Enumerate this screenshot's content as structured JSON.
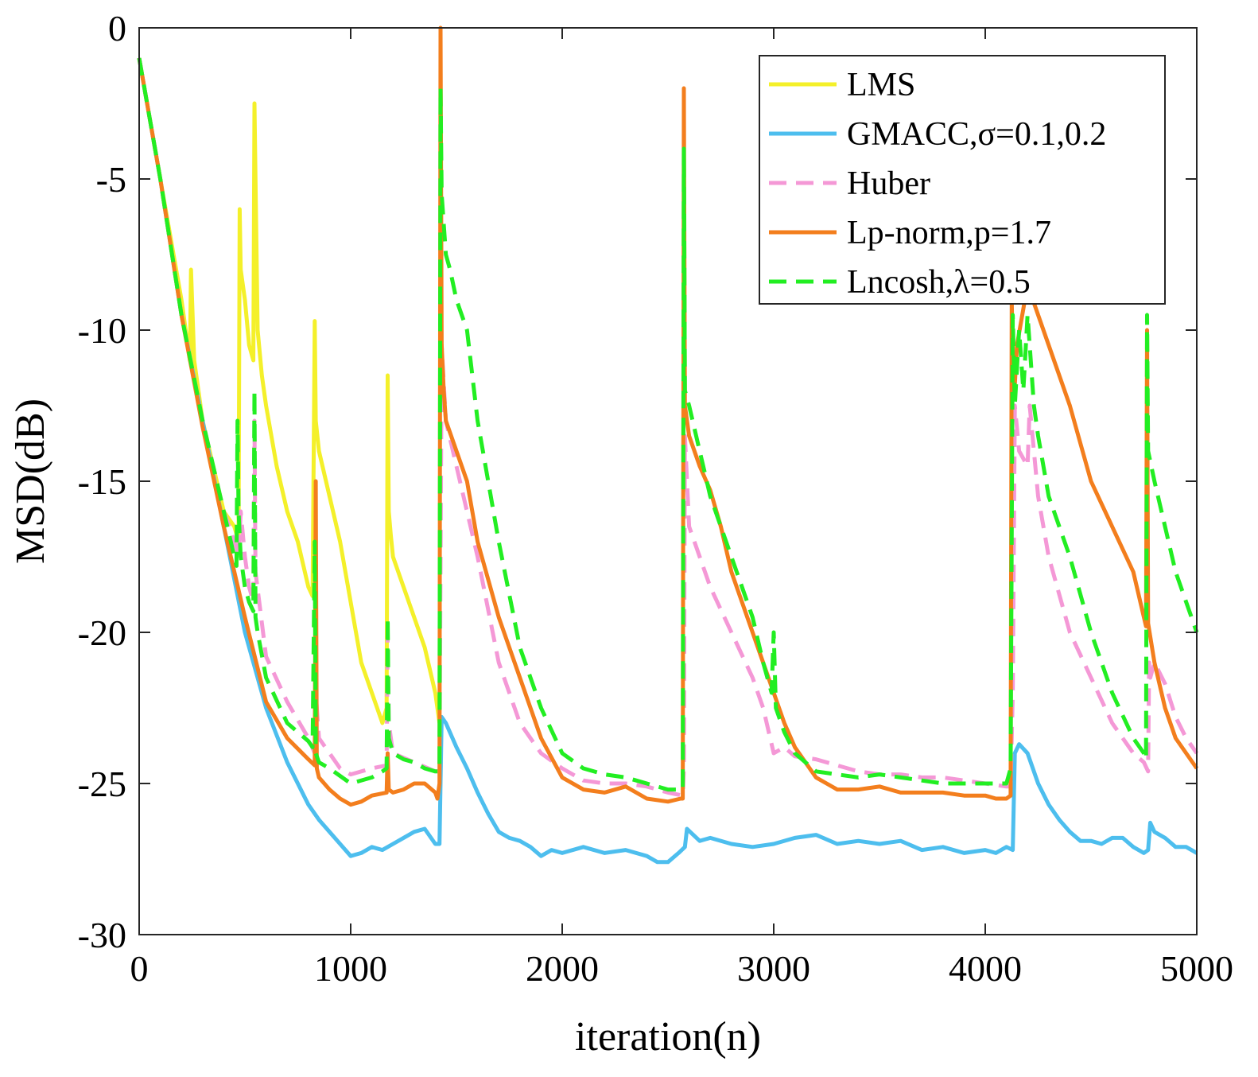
{
  "chart_data": {
    "type": "line",
    "title": "",
    "xlabel": "iteration(n)",
    "ylabel": "MSD(dB)",
    "xlim": [
      0,
      5000
    ],
    "ylim": [
      -30,
      0
    ],
    "xticks": [
      0,
      1000,
      2000,
      3000,
      4000,
      5000
    ],
    "xtick_labels": [
      "0",
      "1000",
      "2000",
      "3000",
      "4000",
      "5000"
    ],
    "yticks": [
      0,
      -5,
      -10,
      -15,
      -20,
      -25,
      -30
    ],
    "ytick_labels": [
      "0",
      "-5",
      "-10",
      "-15",
      "-20",
      "-25",
      "-30"
    ],
    "grid": false,
    "legend_position": "top-right",
    "series": [
      {
        "name": "LMS",
        "color": "#f4f02a",
        "dash": "solid",
        "x": [
          0,
          100,
          200,
          240,
          245,
          260,
          300,
          350,
          400,
          450,
          470,
          475,
          480,
          500,
          520,
          540,
          545,
          550,
          560,
          580,
          600,
          650,
          700,
          750,
          800,
          820,
          830,
          835,
          850,
          900,
          950,
          1000,
          1050,
          1100,
          1150,
          1170,
          1175,
          1180,
          1190,
          1200,
          1250,
          1300,
          1350,
          1400,
          1420
        ],
        "y": [
          -1,
          -5,
          -9,
          -11,
          -8,
          -11,
          -13,
          -14.5,
          -16,
          -16.5,
          -17,
          -6,
          -8,
          -9,
          -10.5,
          -11,
          -2.5,
          -5,
          -10,
          -11.5,
          -12.5,
          -14.5,
          -16,
          -17,
          -18.5,
          -18.8,
          -9.7,
          -13,
          -14,
          -15.5,
          -17,
          -19,
          -21,
          -22,
          -23,
          -22.5,
          -11.5,
          -16,
          -16.8,
          -17.5,
          -18.5,
          -19.5,
          -20.5,
          -22,
          -23
        ]
      },
      {
        "name": "GMACC,σ=0.1,0.2",
        "color": "#4dbeee",
        "dash": "solid",
        "x": [
          0,
          100,
          200,
          300,
          400,
          500,
          600,
          700,
          800,
          850,
          900,
          950,
          1000,
          1050,
          1100,
          1150,
          1200,
          1250,
          1300,
          1350,
          1400,
          1420,
          1430,
          1450,
          1500,
          1550,
          1600,
          1650,
          1700,
          1750,
          1800,
          1850,
          1900,
          1950,
          2000,
          2100,
          2200,
          2300,
          2400,
          2450,
          2500,
          2550,
          2580,
          2590,
          2650,
          2700,
          2800,
          2900,
          3000,
          3100,
          3200,
          3300,
          3400,
          3500,
          3600,
          3700,
          3800,
          3900,
          4000,
          4050,
          4100,
          4130,
          4140,
          4160,
          4200,
          4250,
          4300,
          4350,
          4400,
          4450,
          4500,
          4550,
          4600,
          4650,
          4700,
          4750,
          4770,
          4780,
          4800,
          4850,
          4900,
          4950,
          5000
        ],
        "y": [
          -1,
          -5,
          -9.5,
          -13,
          -16.5,
          -20,
          -22.5,
          -24.3,
          -25.7,
          -26.2,
          -26.6,
          -27,
          -27.4,
          -27.3,
          -27.1,
          -27.2,
          -27,
          -26.8,
          -26.6,
          -26.5,
          -27,
          -27,
          -22.8,
          -23,
          -23.8,
          -24.5,
          -25.3,
          -26,
          -26.6,
          -26.8,
          -26.9,
          -27.1,
          -27.4,
          -27.2,
          -27.3,
          -27.1,
          -27.3,
          -27.2,
          -27.4,
          -27.6,
          -27.6,
          -27.3,
          -27.1,
          -26.5,
          -26.9,
          -26.8,
          -27,
          -27.1,
          -27,
          -26.8,
          -26.7,
          -27,
          -26.9,
          -27,
          -26.9,
          -27.2,
          -27.1,
          -27.3,
          -27.2,
          -27.3,
          -27.1,
          -27.2,
          -24,
          -23.7,
          -24,
          -25,
          -25.7,
          -26.2,
          -26.6,
          -26.9,
          -26.9,
          -27,
          -26.8,
          -26.8,
          -27.1,
          -27.3,
          -27.2,
          -26.3,
          -26.6,
          -26.8,
          -27.1,
          -27.1,
          -27.3
        ]
      },
      {
        "name": "Huber",
        "color": "#f498d6",
        "dash": "dashed",
        "x": [
          0,
          100,
          200,
          300,
          400,
          460,
          470,
          480,
          500,
          520,
          540,
          545,
          550,
          600,
          700,
          800,
          830,
          835,
          850,
          900,
          950,
          1000,
          1100,
          1170,
          1175,
          1180,
          1200,
          1300,
          1400,
          1420,
          1430,
          1450,
          1500,
          1600,
          1700,
          1800,
          1900,
          2000,
          2100,
          2200,
          2300,
          2400,
          2500,
          2570,
          2575,
          2580,
          2600,
          2650,
          2700,
          2800,
          2900,
          2950,
          3000,
          3050,
          3100,
          3200,
          3300,
          3400,
          3500,
          3600,
          3700,
          3800,
          3900,
          4000,
          4100,
          4120,
          4130,
          4140,
          4160,
          4200,
          4210,
          4250,
          4300,
          4400,
          4500,
          4600,
          4700,
          4750,
          4770,
          4775,
          4780,
          4800,
          4850,
          4900,
          4950,
          5000
        ],
        "y": [
          -1,
          -5,
          -9.5,
          -13,
          -16,
          -17.2,
          -17.5,
          -16,
          -17.5,
          -18.5,
          -19,
          -13,
          -18,
          -20.8,
          -22.3,
          -23.5,
          -24,
          -22,
          -23.5,
          -24,
          -24.5,
          -24.7,
          -24.5,
          -24.4,
          -20,
          -23,
          -24,
          -24.3,
          -24.6,
          -24.6,
          -10.5,
          -13,
          -14.5,
          -17.5,
          -21,
          -23,
          -24,
          -24.5,
          -24.9,
          -25,
          -25,
          -25.1,
          -25.3,
          -25.4,
          -24.5,
          -13.5,
          -16.5,
          -17.5,
          -18.5,
          -20,
          -21.5,
          -22.5,
          -24,
          -23.8,
          -24.1,
          -24.2,
          -24.4,
          -24.6,
          -24.7,
          -24.7,
          -24.8,
          -24.8,
          -24.9,
          -25,
          -25.1,
          -25.1,
          -22,
          -12.5,
          -14,
          -14.5,
          -12.5,
          -15.5,
          -17.5,
          -20,
          -21.5,
          -23,
          -24,
          -24.3,
          -24.6,
          -21,
          -21.5,
          -21,
          -21.7,
          -22.8,
          -23.5,
          -24
        ]
      },
      {
        "name": "Lp-norm,p=1.7",
        "color": "#f37e1d",
        "dash": "solid",
        "x": [
          0,
          100,
          200,
          300,
          400,
          500,
          600,
          700,
          800,
          830,
          835,
          840,
          850,
          900,
          950,
          1000,
          1050,
          1100,
          1170,
          1175,
          1180,
          1200,
          1250,
          1300,
          1350,
          1400,
          1410,
          1420,
          1425,
          1430,
          1440,
          1450,
          1500,
          1550,
          1600,
          1700,
          1800,
          1900,
          2000,
          2100,
          2200,
          2300,
          2400,
          2500,
          2560,
          2570,
          2575,
          2580,
          2600,
          2650,
          2700,
          2750,
          2800,
          2900,
          3000,
          3050,
          3100,
          3150,
          3200,
          3250,
          3300,
          3400,
          3500,
          3600,
          3700,
          3800,
          3900,
          4000,
          4050,
          4100,
          4120,
          4125,
          4130,
          4140,
          4150,
          4200,
          4250,
          4300,
          4400,
          4500,
          4600,
          4700,
          4750,
          4760,
          4765,
          4770,
          4800,
          4850,
          4900,
          4950,
          5000
        ],
        "y": [
          -1,
          -5,
          -9.5,
          -13.2,
          -16.5,
          -19.5,
          -22.3,
          -23.5,
          -24.2,
          -24.4,
          -15,
          -24.5,
          -24.8,
          -25.2,
          -25.5,
          -25.7,
          -25.6,
          -25.4,
          -25.3,
          -24,
          -25.2,
          -25.3,
          -25.2,
          -25,
          -25,
          -25.3,
          -25.5,
          -25,
          0,
          -10.5,
          -12,
          -13,
          -14,
          -15,
          -17,
          -19.5,
          -21.5,
          -23.5,
          -24.8,
          -25.2,
          -25.3,
          -25.1,
          -25.5,
          -25.6,
          -25.5,
          -25.5,
          -2,
          -12.5,
          -13.5,
          -14.5,
          -15.3,
          -16.5,
          -18,
          -20,
          -22,
          -23,
          -23.8,
          -24.3,
          -24.8,
          -25,
          -25.2,
          -25.2,
          -25.1,
          -25.3,
          -25.3,
          -25.3,
          -25.4,
          -25.4,
          -25.5,
          -25.5,
          -25.4,
          -9,
          -11,
          -11.8,
          -10.5,
          -8.5,
          -9.5,
          -10.5,
          -12.5,
          -15,
          -16.5,
          -18,
          -19.5,
          -19.8,
          -10,
          -19.7,
          -21,
          -22.5,
          -23.5,
          -24,
          -24.5
        ]
      },
      {
        "name": "Lncosh,λ=0.5",
        "color": "#22ee22",
        "dash": "dashed",
        "x": [
          0,
          100,
          200,
          300,
          400,
          450,
          460,
          465,
          470,
          480,
          500,
          520,
          540,
          545,
          550,
          560,
          600,
          700,
          800,
          820,
          830,
          835,
          850,
          900,
          1000,
          1100,
          1150,
          1170,
          1175,
          1180,
          1200,
          1250,
          1300,
          1350,
          1400,
          1420,
          1425,
          1430,
          1450,
          1470,
          1500,
          1550,
          1600,
          1700,
          1800,
          1900,
          2000,
          2100,
          2200,
          2300,
          2400,
          2500,
          2570,
          2575,
          2580,
          2600,
          2650,
          2700,
          2800,
          2900,
          2950,
          2990,
          3000,
          3010,
          3050,
          3100,
          3200,
          3300,
          3400,
          3500,
          3600,
          3700,
          3800,
          3900,
          4000,
          4100,
          4120,
          4130,
          4140,
          4160,
          4180,
          4200,
          4210,
          4230,
          4250,
          4300,
          4400,
          4500,
          4600,
          4700,
          4750,
          4760,
          4765,
          4770,
          4800,
          4850,
          4900,
          4950,
          5000
        ],
        "y": [
          -1,
          -5,
          -9.5,
          -13,
          -16,
          -17.5,
          -17.8,
          -13,
          -16,
          -17.5,
          -18.5,
          -19,
          -19.3,
          -12,
          -19.5,
          -20,
          -21.5,
          -23,
          -23.6,
          -23.8,
          -17,
          -24,
          -24.3,
          -24.5,
          -25,
          -24.8,
          -24.6,
          -24.5,
          -19.5,
          -23.5,
          -24,
          -24.2,
          -24.3,
          -24.5,
          -24.6,
          -24.6,
          -2,
          -5.5,
          -7.5,
          -8,
          -9,
          -10,
          -13,
          -17,
          -20.5,
          -22.5,
          -24,
          -24.5,
          -24.7,
          -24.8,
          -25,
          -25.2,
          -25.2,
          -4,
          -12,
          -12.5,
          -14,
          -15.5,
          -17.5,
          -19.5,
          -21,
          -22,
          -20,
          -22.5,
          -23.3,
          -24,
          -24.6,
          -24.7,
          -24.8,
          -24.7,
          -24.8,
          -24.9,
          -25,
          -25,
          -25,
          -25,
          -24.5,
          -9.5,
          -12.5,
          -10,
          -12,
          -9.5,
          -10.5,
          -12.5,
          -13.5,
          -15.5,
          -17.5,
          -20,
          -22,
          -23.5,
          -24,
          -24.2,
          -9.5,
          -14,
          -15,
          -16.5,
          -18,
          -19,
          -20
        ]
      }
    ]
  }
}
